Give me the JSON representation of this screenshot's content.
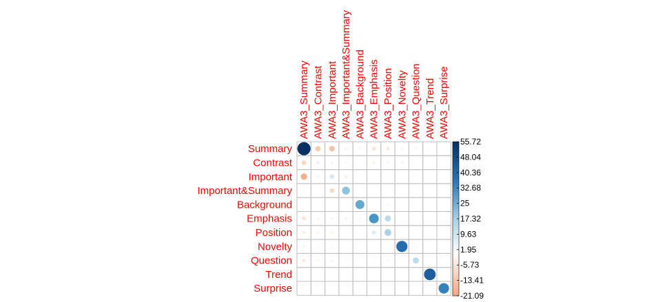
{
  "chart_data": {
    "type": "heatmap",
    "title": "",
    "row_labels": [
      "Summary",
      "Contrast",
      "Important",
      "Important&Summary",
      "Background",
      "Emphasis",
      "Position",
      "Novelty",
      "Question",
      "Trend",
      "Surprise"
    ],
    "col_labels": [
      "AWA3_Summary",
      "AWA3_Contrast",
      "AWA3_Important",
      "AWA3_Important&Summary",
      "AWA3_Background",
      "AWA3_Emphasis",
      "AWA3_Position",
      "AWA3_Novelty",
      "AWA3_Question",
      "AWA3_Trend",
      "AWA3_Surprise"
    ],
    "values": [
      [
        55.7,
        -9.0,
        -10.0,
        -2.0,
        -1.5,
        -5.0,
        -4.0,
        -2.0,
        -1.0,
        -1.0,
        0
      ],
      [
        -7.0,
        4.0,
        3.0,
        1.5,
        0,
        -2.5,
        -1.5,
        -2.0,
        0,
        0,
        0
      ],
      [
        -13.0,
        2.5,
        7.0,
        -3.0,
        -0.5,
        0,
        0,
        0,
        -0.5,
        -0.5,
        0
      ],
      [
        1.0,
        0,
        -7.0,
        20.0,
        0,
        0,
        0,
        -0.5,
        0,
        -0.5,
        0
      ],
      [
        0.5,
        0,
        -0.5,
        0,
        26.0,
        -0.5,
        -1.0,
        0,
        0,
        0,
        0
      ],
      [
        -5.0,
        -2.0,
        -1.5,
        -2.5,
        -1.0,
        30.0,
        12.0,
        0,
        0,
        0,
        0
      ],
      [
        -3.0,
        -1.5,
        -1.5,
        -0.5,
        0,
        6.0,
        15.0,
        0,
        0,
        0,
        0
      ],
      [
        -2.0,
        -1.0,
        -1.0,
        0,
        0,
        0,
        0,
        40.0,
        -0.5,
        -0.5,
        0
      ],
      [
        -4.0,
        -1.5,
        2.0,
        -0.5,
        0,
        -0.5,
        -1.0,
        -0.5,
        12.0,
        0,
        0
      ],
      [
        -0.5,
        -0.5,
        -0.5,
        0,
        -0.5,
        0,
        0,
        -0.5,
        0,
        44.0,
        0
      ],
      [
        0,
        0,
        0,
        0,
        -0.5,
        0,
        0,
        0,
        0,
        0,
        35.0
      ]
    ],
    "colorbar_ticks": [
      "55.72",
      "48.04",
      "40.36",
      "32.68",
      "25",
      "17.32",
      "9.63",
      "1.95",
      "-5.73",
      "-13.41",
      "-21.09"
    ],
    "colorbar_range": [
      -21.09,
      55.72
    ],
    "colors": {
      "negative_end": "#ea7b5e",
      "neutral": "#ffffff",
      "positive_end": "#053061",
      "grid": "#bebebe",
      "label": "#ff0000"
    }
  }
}
